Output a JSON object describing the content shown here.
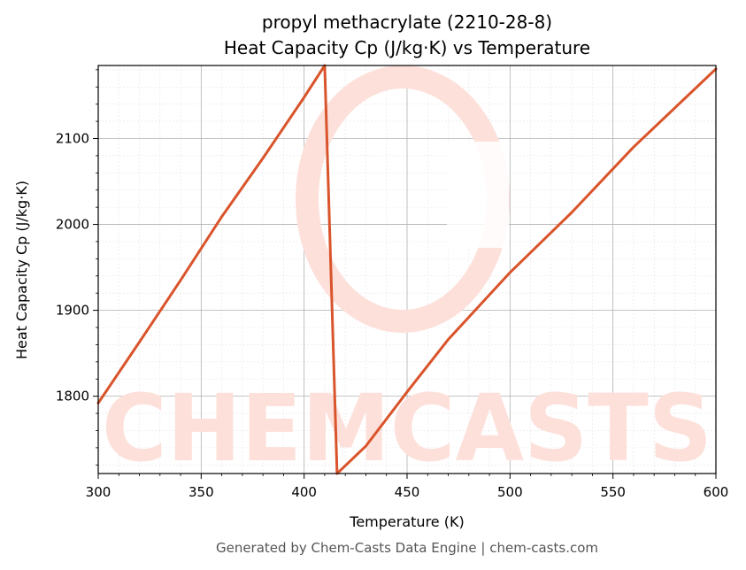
{
  "chart_data": {
    "type": "line",
    "title_line1": "propyl methacrylate (2210-28-8)",
    "title_line2": "Heat Capacity Cp (J/kg·K) vs Temperature",
    "xlabel": "Temperature (K)",
    "ylabel": "Heat Capacity Cp (J/kg·K)",
    "xlim": [
      300,
      600
    ],
    "ylim": [
      1710,
      2185
    ],
    "xticks": [
      300,
      350,
      400,
      450,
      500,
      550,
      600
    ],
    "yticks": [
      1800,
      1900,
      2000,
      2100
    ],
    "grid": true,
    "line_color": "#d9542b",
    "series": [
      {
        "x": [
          300,
          320,
          340,
          360,
          380,
          400,
          410,
          416,
          430,
          450,
          470,
          500,
          530,
          560,
          600
        ],
        "y": [
          1792,
          1863,
          1935,
          2009,
          2077,
          2148,
          2185,
          1710,
          1742,
          1805,
          1866,
          1944,
          2014,
          2090,
          2181
        ]
      }
    ]
  },
  "watermark": {
    "text": "CHEMCASTS",
    "color": "#fde0da"
  },
  "footer": "Generated by Chem-Casts Data Engine | chem-casts.com"
}
